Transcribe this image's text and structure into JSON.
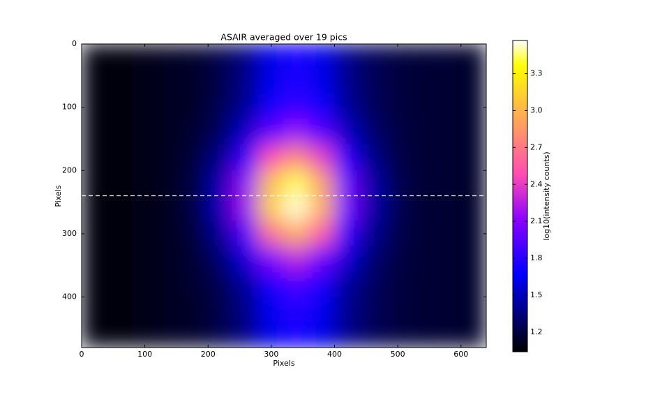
{
  "chart_data": {
    "type": "heatmap",
    "title": "ASAIR averaged over 19 pics",
    "xlabel": "Pixels",
    "ylabel": "Pixels",
    "colorbar_label": "log10(intensity counts)",
    "colormap": "gnuplot2",
    "x": [
      20,
      60,
      100,
      140,
      180,
      220,
      260,
      300,
      340,
      380,
      420,
      460,
      500,
      540,
      580,
      620
    ],
    "y": [
      20,
      60,
      100,
      140,
      180,
      220,
      260,
      300,
      340,
      380,
      420,
      460
    ],
    "z": [
      [
        1.06,
        1.08,
        1.1,
        1.12,
        1.15,
        1.22,
        1.36,
        1.62,
        1.75,
        1.62,
        1.38,
        1.26,
        1.2,
        1.17,
        1.16,
        1.15
      ],
      [
        1.06,
        1.08,
        1.1,
        1.12,
        1.15,
        1.22,
        1.37,
        1.63,
        1.77,
        1.63,
        1.39,
        1.26,
        1.2,
        1.17,
        1.16,
        1.15
      ],
      [
        1.06,
        1.08,
        1.1,
        1.12,
        1.15,
        1.24,
        1.41,
        1.7,
        1.85,
        1.7,
        1.42,
        1.27,
        1.2,
        1.17,
        1.16,
        1.15
      ],
      [
        1.06,
        1.08,
        1.1,
        1.12,
        1.16,
        1.28,
        1.55,
        1.96,
        2.15,
        1.93,
        1.53,
        1.31,
        1.21,
        1.17,
        1.16,
        1.15
      ],
      [
        1.06,
        1.08,
        1.1,
        1.12,
        1.19,
        1.39,
        1.83,
        2.49,
        2.78,
        2.4,
        1.76,
        1.38,
        1.22,
        1.17,
        1.16,
        1.15
      ],
      [
        1.06,
        1.08,
        1.1,
        1.12,
        1.21,
        1.49,
        2.14,
        3.05,
        3.44,
        2.9,
        2.0,
        1.46,
        1.24,
        1.17,
        1.16,
        1.15
      ],
      [
        1.06,
        1.08,
        1.1,
        1.12,
        1.22,
        1.51,
        2.18,
        3.13,
        3.54,
        2.98,
        2.04,
        1.47,
        1.24,
        1.17,
        1.16,
        1.15
      ],
      [
        1.06,
        1.08,
        1.1,
        1.12,
        1.19,
        1.42,
        1.92,
        2.65,
        2.96,
        2.54,
        1.83,
        1.4,
        1.23,
        1.17,
        1.16,
        1.15
      ],
      [
        1.06,
        1.08,
        1.1,
        1.12,
        1.17,
        1.31,
        1.6,
        2.07,
        2.28,
        2.02,
        1.58,
        1.32,
        1.21,
        1.17,
        1.16,
        1.15
      ],
      [
        1.06,
        1.08,
        1.1,
        1.12,
        1.16,
        1.24,
        1.43,
        1.75,
        1.9,
        1.73,
        1.43,
        1.28,
        1.2,
        1.17,
        1.16,
        1.15
      ],
      [
        1.06,
        1.08,
        1.1,
        1.12,
        1.15,
        1.22,
        1.37,
        1.64,
        1.78,
        1.64,
        1.39,
        1.26,
        1.2,
        1.17,
        1.16,
        1.15
      ],
      [
        1.06,
        1.08,
        1.1,
        1.12,
        1.15,
        1.22,
        1.36,
        1.62,
        1.75,
        1.62,
        1.38,
        1.26,
        1.2,
        1.17,
        1.16,
        1.15
      ]
    ],
    "xlim": [
      0,
      640
    ],
    "ylim": [
      480,
      0
    ],
    "xticks": [
      0,
      100,
      200,
      300,
      400,
      500,
      600
    ],
    "yticks": [
      0,
      100,
      200,
      300,
      400
    ],
    "clim": [
      1.04,
      3.57
    ],
    "cticks": [
      1.2,
      1.5,
      1.8,
      2.1,
      2.4,
      2.7,
      {
        "value": 3,
        "label": "3.0"
      },
      3.3
    ],
    "hline": {
      "y": 240,
      "color": "#ffffff",
      "style": "dashed"
    }
  }
}
